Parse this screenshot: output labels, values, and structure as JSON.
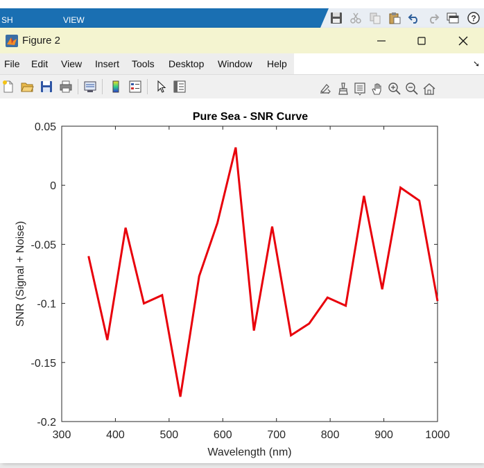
{
  "ribbon": {
    "tabs": [
      {
        "label": "SH"
      },
      {
        "label": "VIEW"
      }
    ],
    "quick_access_icons": [
      "save-icon",
      "cut-icon",
      "copy-icon",
      "paste-icon",
      "undo-icon",
      "redo-icon",
      "switch-windows-icon",
      "help-icon"
    ]
  },
  "window": {
    "title": "Figure 2",
    "controls": [
      "minimize-icon",
      "maximize-icon",
      "close-icon"
    ]
  },
  "menu": {
    "items": [
      {
        "label": "File"
      },
      {
        "label": "Edit"
      },
      {
        "label": "View"
      },
      {
        "label": "Insert"
      },
      {
        "label": "Tools"
      },
      {
        "label": "Desktop"
      },
      {
        "label": "Window"
      },
      {
        "label": "Help"
      }
    ]
  },
  "toolbar": {
    "icons": [
      "new-figure-icon",
      "open-file-icon",
      "save-figure-icon",
      "print-icon",
      "link-plot-icon",
      "insert-colorbar-icon",
      "insert-legend-icon",
      "edit-plot-icon",
      "property-inspector-icon"
    ]
  },
  "axes_toolbar": {
    "icons": [
      "export-icon",
      "brush-icon",
      "data-tips-icon",
      "pan-icon",
      "zoom-in-icon",
      "zoom-out-icon",
      "home-icon"
    ]
  },
  "colors": {
    "line": "#e8000b",
    "ribbon": "#1a6fb2",
    "title_bar": "#f4f4d0"
  },
  "chart_data": {
    "type": "line",
    "title": "Pure Sea - SNR Curve",
    "xlabel": "Wavelength (nm)",
    "ylabel": "SNR (Signal + Noise)",
    "xlim": [
      300,
      1000
    ],
    "ylim": [
      -0.2,
      0.05
    ],
    "xticks": [
      300,
      400,
      500,
      600,
      700,
      800,
      900,
      1000
    ],
    "xtick_labels": [
      "300",
      "400",
      "500",
      "600",
      "700",
      "800",
      "900",
      "1000"
    ],
    "yticks": [
      0.05,
      0,
      -0.05,
      -0.1,
      -0.15,
      -0.2
    ],
    "ytick_labels": [
      "0.05",
      "0",
      "-0.05",
      "-0.1",
      "-0.15",
      "-0.2"
    ],
    "grid": false,
    "series": [
      {
        "x": [
          350,
          385,
          419,
          453,
          487,
          521,
          556,
          590,
          624,
          658,
          692,
          727,
          761,
          795,
          829,
          863,
          897,
          931,
          966,
          1000
        ],
        "y": [
          -0.06,
          -0.131,
          -0.036,
          -0.1,
          -0.093,
          -0.179,
          -0.077,
          -0.032,
          0.032,
          -0.123,
          -0.035,
          -0.127,
          -0.117,
          -0.095,
          -0.102,
          -0.009,
          -0.088,
          -0.002,
          -0.013,
          -0.098
        ]
      }
    ]
  }
}
